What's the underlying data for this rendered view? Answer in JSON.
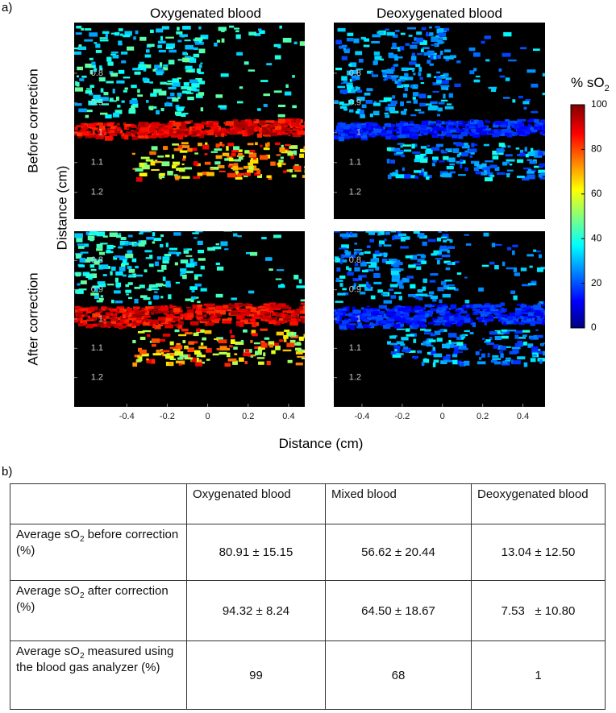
{
  "figure_a": {
    "label": "a)",
    "columns": [
      {
        "title": "Oxygenated blood",
        "xlim": [
          -0.66,
          0.48
        ]
      },
      {
        "title": "Deoxygenated blood",
        "xlim": [
          -0.54,
          0.51
        ]
      }
    ],
    "rows": [
      {
        "title": "Before correction",
        "ylim": [
          0.63,
          1.29
        ]
      },
      {
        "title": "After correction",
        "ylim": [
          0.7,
          1.3
        ]
      }
    ],
    "y_label": "Distance (cm)",
    "x_label": "Distance (cm)",
    "yticks": [
      0.8,
      0.9,
      1,
      1.1,
      1.2
    ],
    "xticks": [
      -0.4,
      -0.2,
      0,
      0.2,
      0.4
    ],
    "colorbar": {
      "label": [
        "% sO",
        "2"
      ],
      "ticks": [
        0,
        20,
        40,
        60,
        80,
        100
      ],
      "lim": [
        0,
        100
      ]
    }
  },
  "table_b": {
    "label": "b)",
    "header": [
      "Oxygenated blood",
      "Mixed blood",
      "Deoxygenated blood"
    ],
    "rows": [
      {
        "label": [
          "Average sO",
          "2",
          " before correction  (%)"
        ],
        "cells": [
          "80.91 ± 15.15",
          "56.62 ± 20.44",
          "13.04 ± 12.50"
        ]
      },
      {
        "label": [
          "Average sO",
          "2",
          " after correction (%)"
        ],
        "cells": [
          "94.32 ± 8.24",
          "64.50 ± 18.67",
          "7.53   ± 10.80"
        ]
      },
      {
        "label": [
          "Average sO",
          "2",
          " measured using the blood gas analyzer (%)"
        ],
        "cells": [
          99,
          68,
          1
        ]
      }
    ]
  }
}
